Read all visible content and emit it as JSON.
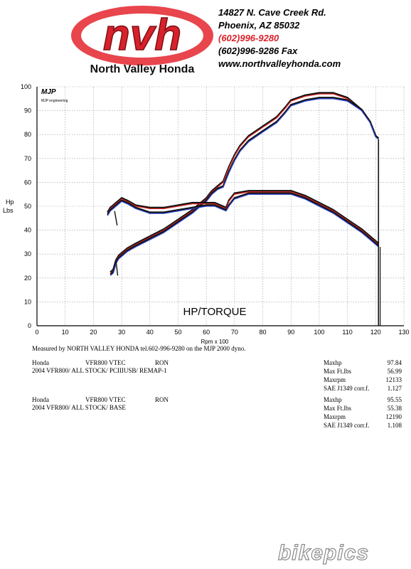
{
  "dealer": {
    "logo_text": "nvh",
    "logo_subtitle": "North Valley Honda",
    "address_line1": "14827 N. Cave Creek Rd.",
    "address_line2": "Phoenix, AZ 85032",
    "phone": "(602)996-9280",
    "fax": "(602)996-9286 Fax",
    "website": "www.northvalleyhonda.com"
  },
  "mjp_logo": {
    "mark": "MJP",
    "name": "MJP engineering"
  },
  "chart_data": {
    "type": "line",
    "title": "HP/TORQUE",
    "xlabel": "Rpm x 100",
    "ylabel_line1": "Hp",
    "ylabel_line2": "Lbs",
    "xlim": [
      0,
      130
    ],
    "ylim": [
      0,
      100
    ],
    "x_ticks": [
      "0",
      "10",
      "20",
      "30",
      "40",
      "50",
      "60",
      "70",
      "80",
      "90",
      "100",
      "110",
      "120",
      "130"
    ],
    "y_ticks": [
      "0",
      "10",
      "20",
      "30",
      "40",
      "50",
      "60",
      "70",
      "80",
      "90",
      "100"
    ],
    "grid": true,
    "colors": {
      "remap": "#e02a2a",
      "base": "#2a43c8",
      "overlay": "#111111"
    },
    "series": [
      {
        "run": "remap",
        "measure": "hp",
        "color": "#e02a2a",
        "x": [
          26,
          27,
          28,
          29,
          30,
          32,
          35,
          40,
          45,
          50,
          55,
          60,
          62,
          64,
          66,
          67,
          68,
          70,
          72,
          75,
          80,
          85,
          88,
          90,
          95,
          100,
          105,
          110,
          115,
          118,
          120,
          121
        ],
        "y": [
          22,
          23,
          27,
          29,
          30,
          32,
          34,
          37,
          40,
          44,
          48,
          53,
          56,
          58,
          60,
          63,
          66,
          71,
          75,
          79,
          83,
          87,
          91,
          94,
          96,
          97,
          97,
          95,
          90,
          85,
          79,
          78
        ]
      },
      {
        "run": "base",
        "measure": "hp",
        "color": "#2a43c8",
        "x": [
          26,
          27,
          28,
          29,
          30,
          32,
          35,
          40,
          45,
          50,
          55,
          60,
          62,
          64,
          66,
          67,
          68,
          70,
          72,
          75,
          80,
          85,
          88,
          90,
          95,
          100,
          105,
          110,
          115,
          118,
          120,
          121
        ],
        "y": [
          21,
          22,
          26,
          28,
          29,
          31,
          33,
          36,
          39,
          43,
          47,
          52,
          55,
          57,
          58,
          61,
          64,
          69,
          73,
          77,
          81,
          85,
          89,
          92,
          94,
          95,
          95,
          94,
          90,
          85,
          79,
          78
        ]
      },
      {
        "run": "remap",
        "measure": "torque",
        "color": "#e02a2a",
        "x": [
          25,
          26,
          27,
          28,
          29,
          30,
          32,
          35,
          40,
          45,
          50,
          55,
          60,
          63,
          65,
          67,
          68,
          70,
          75,
          80,
          85,
          90,
          95,
          100,
          105,
          110,
          115,
          118,
          120,
          121
        ],
        "y": [
          47,
          49,
          50,
          51,
          52,
          53,
          52,
          50,
          49,
          49,
          50,
          51,
          51,
          51,
          50,
          49,
          52,
          55,
          56,
          56,
          56,
          56,
          54,
          51,
          48,
          44,
          40,
          37,
          35,
          34
        ]
      },
      {
        "run": "base",
        "measure": "torque",
        "color": "#2a43c8",
        "x": [
          25,
          26,
          27,
          28,
          29,
          30,
          32,
          35,
          40,
          45,
          50,
          55,
          60,
          63,
          65,
          67,
          68,
          70,
          75,
          80,
          85,
          90,
          95,
          100,
          105,
          110,
          115,
          118,
          120,
          121
        ],
        "y": [
          46,
          48,
          49,
          50,
          51,
          52,
          51,
          49,
          47,
          47,
          48,
          49,
          50,
          50,
          49,
          48,
          50,
          53,
          55,
          55,
          55,
          55,
          53,
          50,
          47,
          43,
          39,
          36,
          34,
          33
        ]
      }
    ]
  },
  "caption": "Measured by NORTH VALLEY  HONDA tel.602-996-9280 on the MJP 2000 dyno.",
  "runs": [
    {
      "make": "Honda",
      "model": "VFR800 VTEC",
      "tag": "RON",
      "description": "2004 VFR800/ ALL STOCK/ PCIIIUSB/ REMAP-1",
      "stats": [
        {
          "label": "Maxhp",
          "value": "97.84"
        },
        {
          "label": "Max Ft.lbs",
          "value": "56.99"
        },
        {
          "label": "Maxrpm",
          "value": "12133"
        },
        {
          "label": "SAE J1349 corr.f.",
          "value": "1.127"
        }
      ]
    },
    {
      "make": "Honda",
      "model": "VFR800 VTEC",
      "tag": "RON",
      "description": "2004 VFR800/ ALL STOCK/ BASE",
      "stats": [
        {
          "label": "Maxhp",
          "value": "95.55"
        },
        {
          "label": "Max Ft.lbs",
          "value": "55.38"
        },
        {
          "label": "Maxrpm",
          "value": "12190"
        },
        {
          "label": "SAE J1349 corr.f.",
          "value": "1.108"
        }
      ]
    }
  ],
  "watermark": "bikepics"
}
